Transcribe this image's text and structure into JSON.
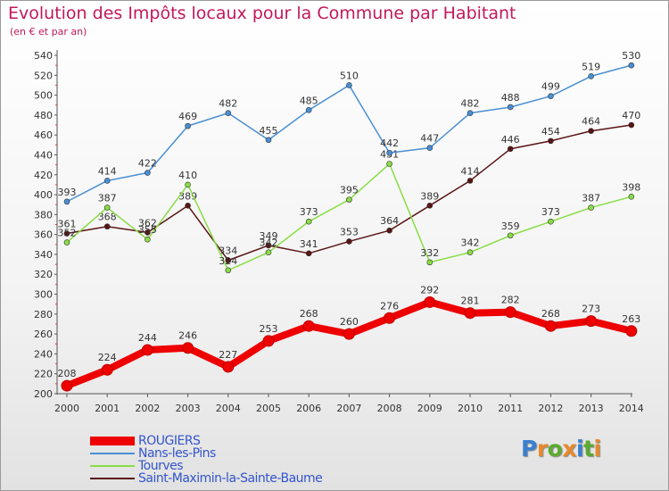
{
  "title": "Evolution des Impôts locaux pour la Commune par Habitant",
  "subtitle": "(en € et par an)",
  "logo": "Proxiti",
  "chart_data": {
    "type": "line",
    "x": [
      "2000",
      "2001",
      "2002",
      "2003",
      "2004",
      "2005",
      "2006",
      "2007",
      "2008",
      "2009",
      "2010",
      "2011",
      "2012",
      "2013",
      "2014"
    ],
    "ylim": [
      200,
      540
    ],
    "yticks": [
      200,
      220,
      240,
      260,
      280,
      300,
      320,
      340,
      360,
      380,
      400,
      420,
      440,
      460,
      480,
      500,
      520,
      540
    ],
    "grid": false,
    "legend_position": "bottom-left",
    "series": [
      {
        "name": "Saint-Maximin-la-Sainte-Baume",
        "color": "#5a1414",
        "values": [
          361,
          368,
          362,
          389,
          334,
          349,
          341,
          353,
          364,
          389,
          414,
          446,
          454,
          464,
          470
        ],
        "labels": [
          "361",
          "368",
          "362",
          "389",
          "334",
          "349",
          "341",
          "353",
          "364",
          "389",
          "414",
          "446",
          "454",
          "464",
          "470"
        ]
      },
      {
        "name": "Tourves",
        "color": "#88dd44",
        "values": [
          352,
          387,
          355,
          410,
          324,
          342,
          373,
          395,
          431,
          332,
          342,
          359,
          373,
          387,
          398
        ],
        "labels": [
          "352",
          "387",
          "355",
          "410",
          "324",
          "342",
          "373",
          "395",
          "431",
          "332",
          "342",
          "359",
          "373",
          "387",
          "398"
        ]
      },
      {
        "name": "Nans-les-Pins",
        "color": "#4a8fd4",
        "values": [
          393,
          414,
          422,
          469,
          482,
          455,
          485,
          510,
          442,
          447,
          482,
          488,
          499,
          519,
          530
        ],
        "labels": [
          "393",
          "414",
          "422",
          "469",
          "482",
          "455",
          "485",
          "510",
          "442",
          "447",
          "482",
          "488",
          "499",
          "519",
          "530"
        ]
      },
      {
        "name": "ROUGIERS",
        "color": "#ee0000",
        "values": [
          208,
          224,
          244,
          246,
          227,
          253,
          268,
          260,
          276,
          292,
          281,
          282,
          268,
          273,
          263
        ],
        "labels": [
          "208",
          "224",
          "244",
          "246",
          "227",
          "253",
          "268",
          "260",
          "276",
          "292",
          "281",
          "282",
          "268",
          "273",
          "263"
        ]
      }
    ]
  },
  "legend": [
    {
      "label": "ROUGIERS",
      "color": "#ee0000",
      "thickness": 10
    },
    {
      "label": "Nans-les-Pins",
      "color": "#4a8fd4",
      "thickness": 2
    },
    {
      "label": "Tourves",
      "color": "#88dd44",
      "thickness": 2
    },
    {
      "label": "Saint-Maximin-la-Sainte-Baume",
      "color": "#5a1414",
      "thickness": 2
    }
  ]
}
